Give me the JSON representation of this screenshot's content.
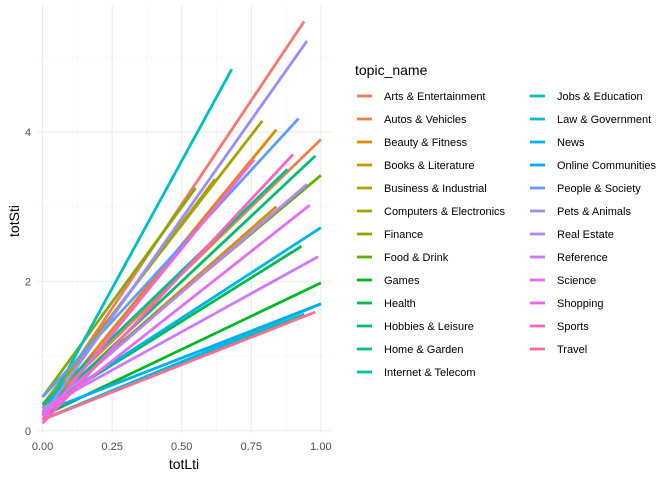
{
  "chart_data": {
    "type": "line",
    "xlabel": "totLti",
    "ylabel": "totSti",
    "xlim": [
      -0.02,
      1.04
    ],
    "ylim": [
      -0.03,
      5.7
    ],
    "x_ticks": [
      0.0,
      0.25,
      0.5,
      0.75,
      1.0
    ],
    "x_tick_labels": [
      "0.00",
      "0.25",
      "0.50",
      "0.75",
      "1.00"
    ],
    "y_ticks": [
      0,
      2,
      4
    ],
    "y_tick_labels": [
      "0",
      "2",
      "4"
    ],
    "grid": true,
    "legend_title": "topic_name",
    "legend_position": "right",
    "series": [
      {
        "name": "Arts & Entertainment",
        "color": "#F8766D",
        "x": [
          0.0,
          0.94
        ],
        "y": [
          0.25,
          5.48
        ]
      },
      {
        "name": "Autos & Vehicles",
        "color": "#F07F46",
        "x": [
          0.0,
          1.0
        ],
        "y": [
          0.3,
          3.9
        ]
      },
      {
        "name": "Beauty & Fitness",
        "color": "#E58700",
        "x": [
          0.0,
          0.84
        ],
        "y": [
          0.22,
          4.03
        ]
      },
      {
        "name": "Books & Literature",
        "color": "#D29200",
        "x": [
          0.0,
          0.84
        ],
        "y": [
          0.25,
          3.0
        ]
      },
      {
        "name": "Business & Industrial",
        "color": "#BC9C00",
        "x": [
          0.0,
          0.62
        ],
        "y": [
          0.3,
          3.37
        ]
      },
      {
        "name": "Computers & Electronics",
        "color": "#A3A500",
        "x": [
          0.0,
          0.79
        ],
        "y": [
          0.35,
          4.15
        ]
      },
      {
        "name": "Finance",
        "color": "#84AD00",
        "x": [
          0.0,
          0.55
        ],
        "y": [
          0.45,
          3.25
        ]
      },
      {
        "name": "Food & Drink",
        "color": "#5BB300",
        "x": [
          0.0,
          1.0
        ],
        "y": [
          0.3,
          3.42
        ]
      },
      {
        "name": "Games",
        "color": "#00B81F",
        "x": [
          0.0,
          1.0
        ],
        "y": [
          0.2,
          1.98
        ]
      },
      {
        "name": "Health",
        "color": "#00BB4E",
        "x": [
          0.0,
          0.93
        ],
        "y": [
          0.3,
          2.47
        ]
      },
      {
        "name": "Hobbies & Leisure",
        "color": "#00BE70",
        "x": [
          0.0,
          0.98
        ],
        "y": [
          0.25,
          3.68
        ]
      },
      {
        "name": "Home & Garden",
        "color": "#00C08D",
        "x": [
          0.0,
          0.88
        ],
        "y": [
          0.35,
          3.5
        ]
      },
      {
        "name": "Internet & Telecom",
        "color": "#00C0A8",
        "x": [
          0.0,
          0.94
        ],
        "y": [
          0.15,
          1.56
        ]
      },
      {
        "name": "Jobs & Education",
        "color": "#00BFC4",
        "x": [
          0.0,
          0.68
        ],
        "y": [
          0.2,
          4.84
        ]
      },
      {
        "name": "Law & Government",
        "color": "#00BBDB",
        "x": [
          0.0,
          1.0
        ],
        "y": [
          0.15,
          1.7
        ]
      },
      {
        "name": "News",
        "color": "#00B5EE",
        "x": [
          0.0,
          1.0
        ],
        "y": [
          0.3,
          2.72
        ]
      },
      {
        "name": "Online Communities",
        "color": "#00ACFC",
        "x": [
          0.0,
          1.0
        ],
        "y": [
          0.25,
          1.7
        ]
      },
      {
        "name": "People & Society",
        "color": "#619CFF",
        "x": [
          0.0,
          0.92
        ],
        "y": [
          0.45,
          4.18
        ]
      },
      {
        "name": "Pets & Animals",
        "color": "#9590FF",
        "x": [
          0.0,
          0.95
        ],
        "y": [
          0.2,
          5.22
        ]
      },
      {
        "name": "Real Estate",
        "color": "#B983FF",
        "x": [
          0.0,
          0.95
        ],
        "y": [
          0.25,
          3.3
        ]
      },
      {
        "name": "Reference",
        "color": "#D277FF",
        "x": [
          0.0,
          0.99
        ],
        "y": [
          0.3,
          2.33
        ]
      },
      {
        "name": "Science",
        "color": "#E76BF3",
        "x": [
          0.0,
          0.96
        ],
        "y": [
          0.2,
          3.02
        ]
      },
      {
        "name": "Shopping",
        "color": "#F564E3",
        "x": [
          0.0,
          0.76
        ],
        "y": [
          0.15,
          3.63
        ]
      },
      {
        "name": "Sports",
        "color": "#FF62BC",
        "x": [
          0.0,
          0.9
        ],
        "y": [
          0.1,
          3.7
        ]
      },
      {
        "name": "Travel",
        "color": "#FF6C91",
        "x": [
          0.0,
          0.98
        ],
        "y": [
          0.15,
          1.59
        ]
      }
    ]
  }
}
